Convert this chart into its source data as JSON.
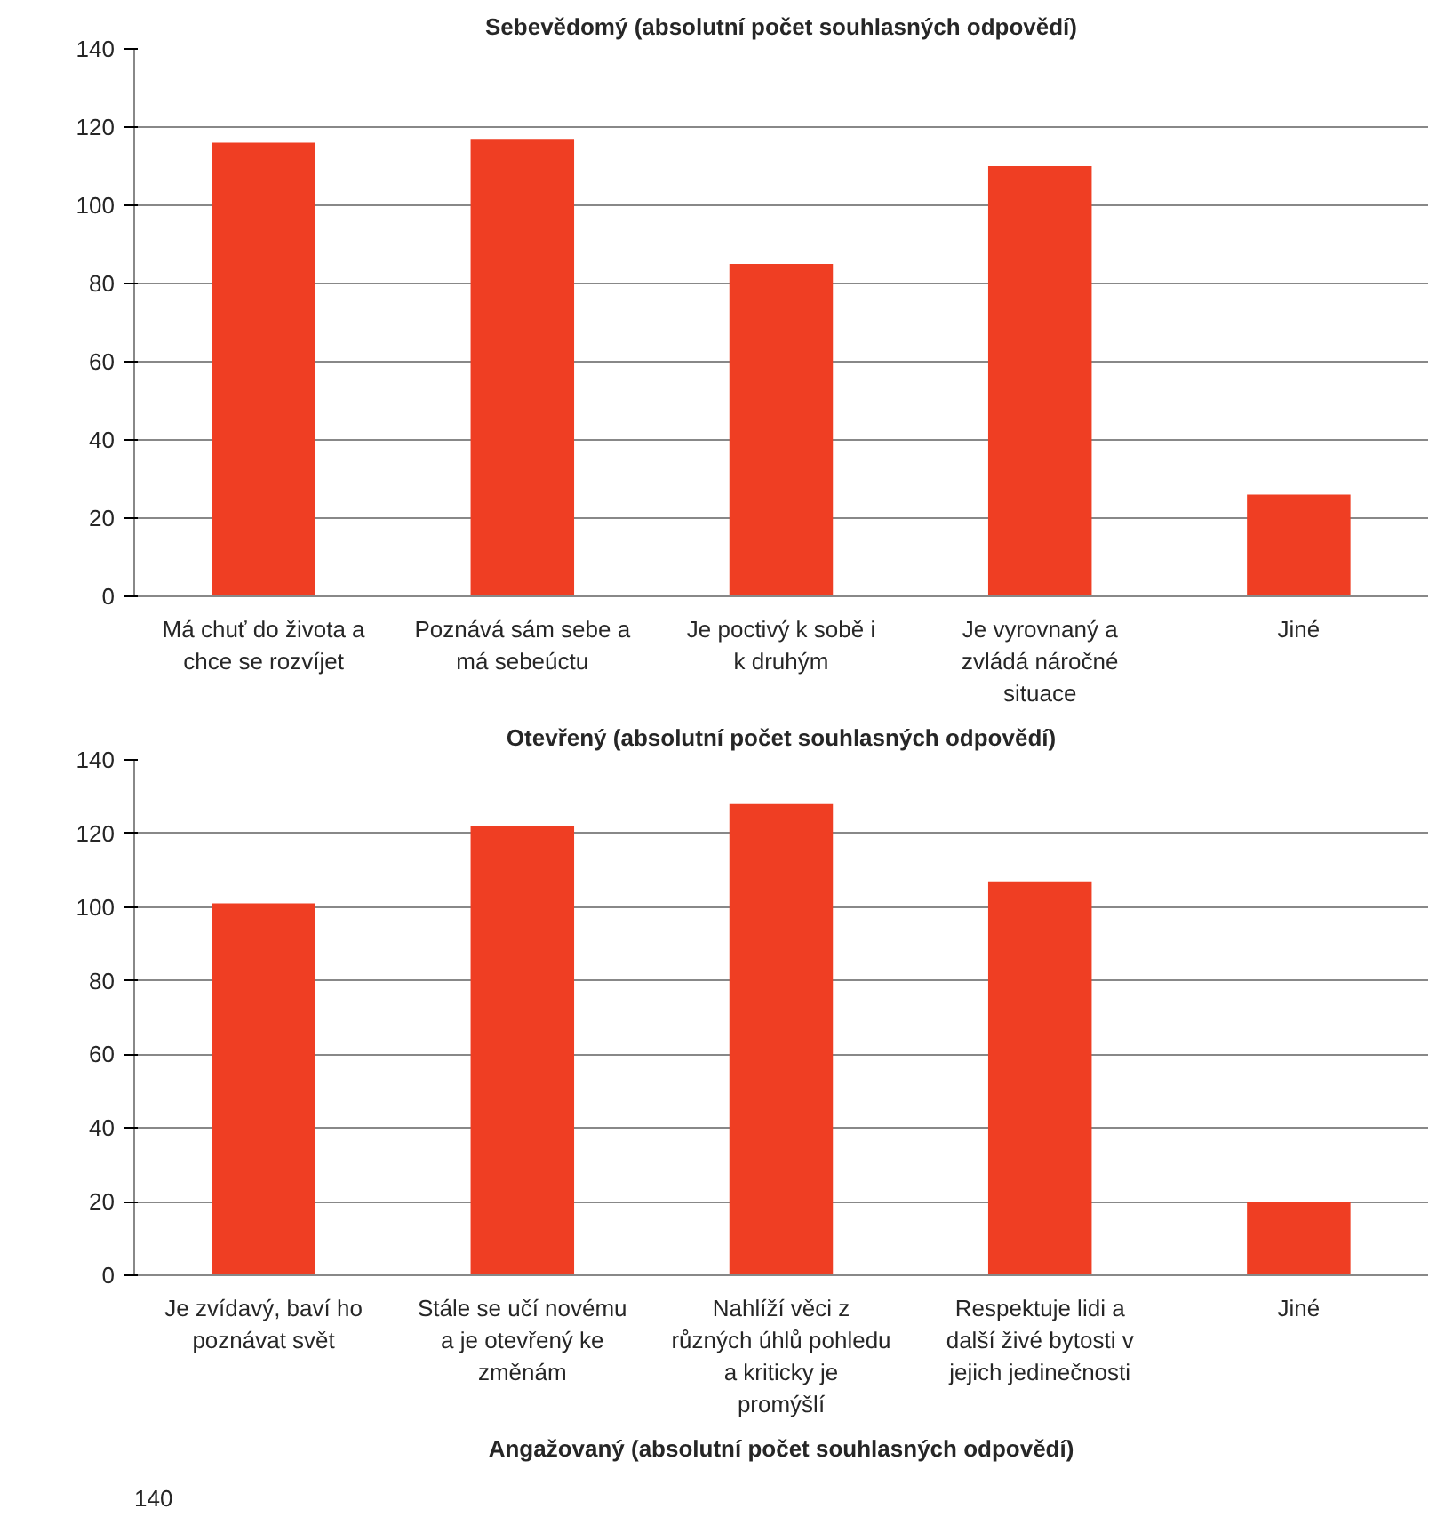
{
  "chart_data": [
    {
      "type": "bar",
      "title": "Sebevědomý (absolutní počet souhlasných odpovědí)",
      "categories": [
        "Má chuť do života a chce se rozvíjet",
        "Poznává sám sebe a má sebeúctu",
        "Je poctivý k sobě i k druhým",
        "Je vyrovnaný a zvládá náročné situace",
        "Jiné"
      ],
      "values": [
        116,
        117,
        85,
        110,
        26
      ],
      "color": "#ef3e23",
      "ylim": [
        0,
        140
      ],
      "yticks": [
        0,
        20,
        40,
        60,
        80,
        100,
        120,
        140
      ],
      "grid": "y"
    },
    {
      "type": "bar",
      "title": "Otevřený (absolutní počet souhlasných odpovědí)",
      "categories": [
        "Je zvídavý, baví ho poznávat svět",
        "Stále se učí novému a je otevřený ke změnám",
        "Nahlíží věci z různých úhlů pohledu a kriticky je promýšlí",
        "Respektuje lidi a další živé bytosti v jejich jedinečnosti",
        "Jiné"
      ],
      "values": [
        101,
        122,
        128,
        107,
        20
      ],
      "color": "#ef3e23",
      "ylim": [
        0,
        140
      ],
      "yticks": [
        0,
        20,
        40,
        60,
        80,
        100,
        120,
        140
      ],
      "grid": "y"
    },
    {
      "type": "other",
      "title": "Angažovaný (absolutní počet souhlasných odpovědí)",
      "annotations": [
        "140"
      ]
    }
  ]
}
